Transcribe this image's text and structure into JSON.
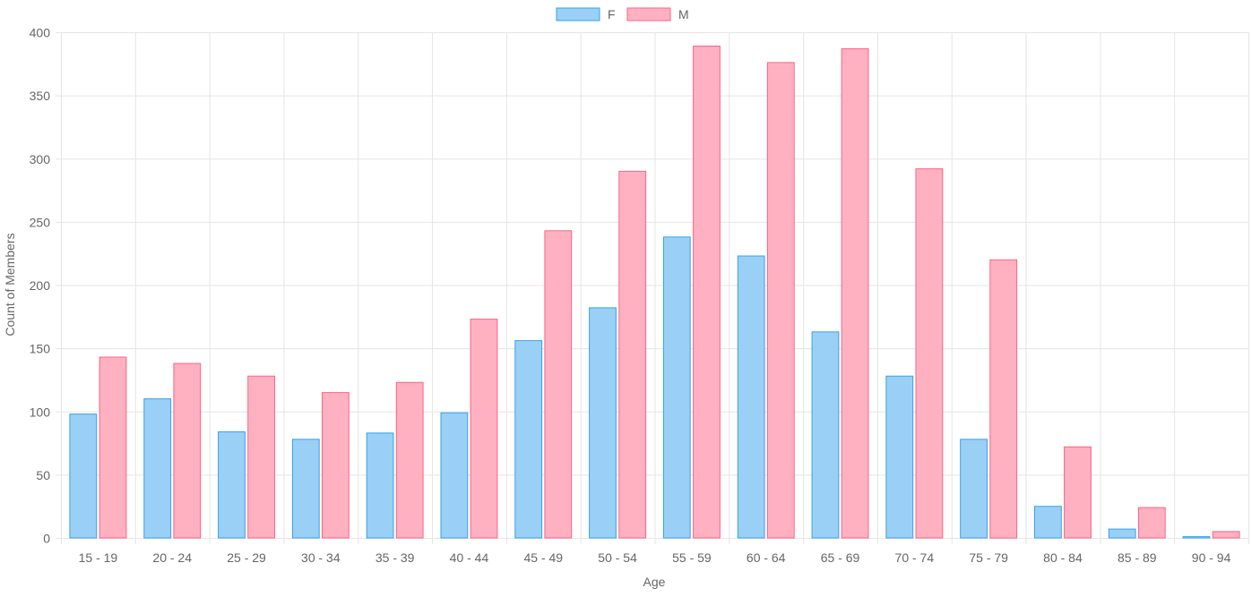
{
  "chart_data": {
    "type": "bar",
    "title": "",
    "xlabel": "Age",
    "ylabel": "Count of Members",
    "ylim": [
      0,
      400
    ],
    "yticks": [
      0,
      50,
      100,
      150,
      200,
      250,
      300,
      350,
      400
    ],
    "grid": true,
    "legend_position": "top",
    "categories": [
      "15 - 19",
      "20 - 24",
      "25 - 29",
      "30 - 34",
      "35 - 39",
      "40 - 44",
      "45 - 49",
      "50 - 54",
      "55 - 59",
      "60 - 64",
      "65 - 69",
      "70 - 74",
      "75 - 79",
      "80 - 84",
      "85 - 89",
      "90 - 94"
    ],
    "series": [
      {
        "name": "F",
        "values": [
          98,
          110,
          84,
          78,
          83,
          99,
          156,
          182,
          238,
          223,
          163,
          128,
          78,
          25,
          7,
          1
        ],
        "fill": "#9ad0f5",
        "stroke": "#36a2eb"
      },
      {
        "name": "M",
        "values": [
          143,
          138,
          128,
          115,
          123,
          173,
          243,
          290,
          389,
          376,
          387,
          292,
          220,
          72,
          24,
          5
        ],
        "fill": "#ffb1c1",
        "stroke": "#ff6384"
      }
    ]
  }
}
